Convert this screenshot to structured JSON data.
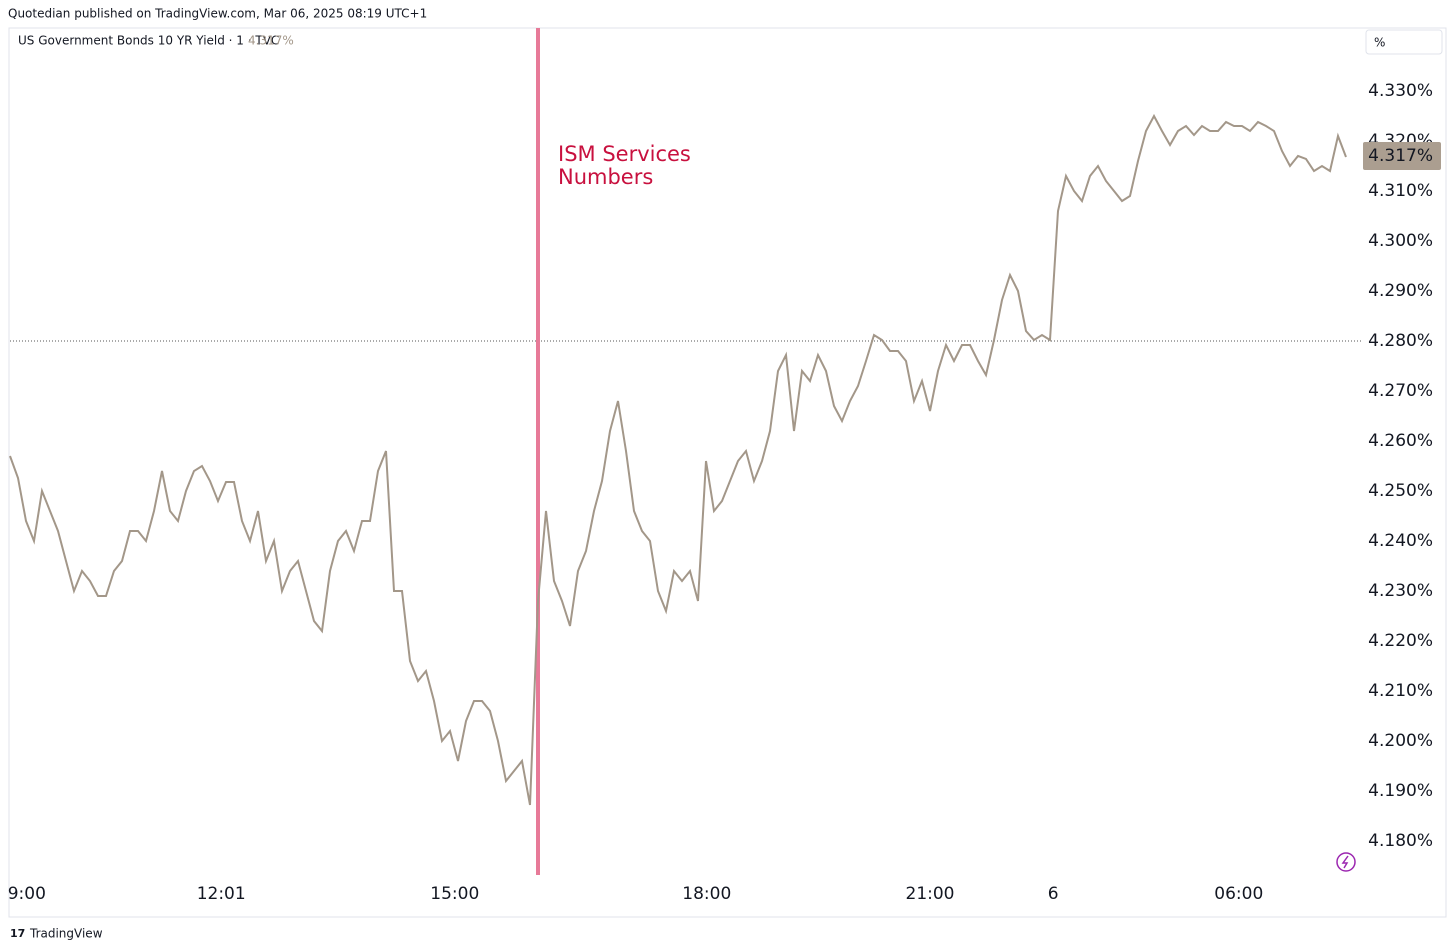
{
  "header": {
    "published": "Quotedian published on TradingView.com, Mar 06, 2025 08:19 UTC+1",
    "symbol": "US Government Bonds 10 YR Yield · 1 · TVC",
    "price": "4.317%",
    "unit": "%",
    "brand": "TradingView"
  },
  "chart_data": {
    "type": "line",
    "series": [
      {
        "name": "US Government Bonds 10 YR Yield",
        "color": "#a39789",
        "values": [
          4.257,
          4.2526,
          4.244,
          4.24,
          4.25,
          4.246,
          4.242,
          4.236,
          4.23,
          4.234,
          4.232,
          4.229,
          4.229,
          4.234,
          4.236,
          4.242,
          4.242,
          4.24,
          4.246,
          4.254,
          4.246,
          4.244,
          4.25,
          4.254,
          4.255,
          4.252,
          4.248,
          4.2518,
          4.2518,
          4.244,
          4.24,
          4.246,
          4.236,
          4.24,
          4.23,
          4.234,
          4.236,
          4.23,
          4.224,
          4.222,
          4.234,
          4.24,
          4.242,
          4.238,
          4.244,
          4.244,
          4.254,
          4.258,
          4.23,
          4.23,
          4.216,
          4.212,
          4.214,
          4.208,
          4.2,
          4.202,
          4.196,
          4.204,
          4.208,
          4.208,
          4.206,
          4.2,
          4.192,
          4.194,
          4.196,
          4.1872,
          4.228,
          4.246,
          4.232,
          4.228,
          4.223,
          4.234,
          4.238,
          4.246,
          4.252,
          4.262,
          4.268,
          4.258,
          4.246,
          4.242,
          4.24,
          4.23,
          4.226,
          4.234,
          4.232,
          4.234,
          4.228,
          4.256,
          4.246,
          4.248,
          4.252,
          4.256,
          4.258,
          4.252,
          4.256,
          4.262,
          4.274,
          4.2772,
          4.262,
          4.274,
          4.272,
          4.2772,
          4.274,
          4.267,
          4.264,
          4.268,
          4.271,
          4.276,
          4.2812,
          4.2802,
          4.278,
          4.278,
          4.276,
          4.268,
          4.272,
          4.266,
          4.274,
          4.2792,
          4.276,
          4.2792,
          4.2792,
          4.276,
          4.2732,
          4.2802,
          4.2882,
          4.2932,
          4.29,
          4.282,
          4.2802,
          4.2812,
          4.2802,
          4.306,
          4.313,
          4.31,
          4.308,
          4.313,
          4.315,
          4.312,
          4.31,
          4.308,
          4.309,
          4.316,
          4.322,
          4.325,
          4.322,
          4.3192,
          4.322,
          4.323,
          4.3212,
          4.323,
          4.322,
          4.322,
          4.3238,
          4.323,
          4.323,
          4.322,
          4.3238,
          4.323,
          4.322,
          4.318,
          4.315,
          4.317,
          4.3164,
          4.314,
          4.315,
          4.314,
          4.321,
          4.3168
        ]
      }
    ],
    "xlim": [
      0,
      169
    ],
    "xticks": [
      {
        "value": 2.1,
        "label": "9:00"
      },
      {
        "value": 26.4,
        "label": "12:01"
      },
      {
        "value": 55.6,
        "label": "15:00"
      },
      {
        "value": 87.1,
        "label": "18:00"
      },
      {
        "value": 115,
        "label": "21:00"
      },
      {
        "value": 130.4,
        "label": "6"
      },
      {
        "value": 153.6,
        "label": "06:00"
      }
    ],
    "ylim": [
      4.1732,
      4.3426
    ],
    "yticks": [
      {
        "value": 4.18,
        "label": "4.180%"
      },
      {
        "value": 4.19,
        "label": "4.190%"
      },
      {
        "value": 4.2,
        "label": "4.200%"
      },
      {
        "value": 4.21,
        "label": "4.210%"
      },
      {
        "value": 4.22,
        "label": "4.220%"
      },
      {
        "value": 4.23,
        "label": "4.230%"
      },
      {
        "value": 4.24,
        "label": "4.240%"
      },
      {
        "value": 4.25,
        "label": "4.250%"
      },
      {
        "value": 4.26,
        "label": "4.260%"
      },
      {
        "value": 4.27,
        "label": "4.270%"
      },
      {
        "value": 4.28,
        "label": "4.280%"
      },
      {
        "value": 4.29,
        "label": "4.290%"
      },
      {
        "value": 4.3,
        "label": "4.300%"
      },
      {
        "value": 4.31,
        "label": "4.310%"
      },
      {
        "value": 4.32,
        "label": "4.320%"
      },
      {
        "value": 4.33,
        "label": "4.330%"
      }
    ],
    "reference_line": 4.28,
    "event_line": {
      "x": 66,
      "color": "#e77a98",
      "label": [
        "ISM Services",
        "Numbers"
      ],
      "label_color": "#c8103e"
    },
    "last_price": {
      "value": 4.317,
      "label": "4.317%",
      "color": "#ab9e90"
    }
  }
}
